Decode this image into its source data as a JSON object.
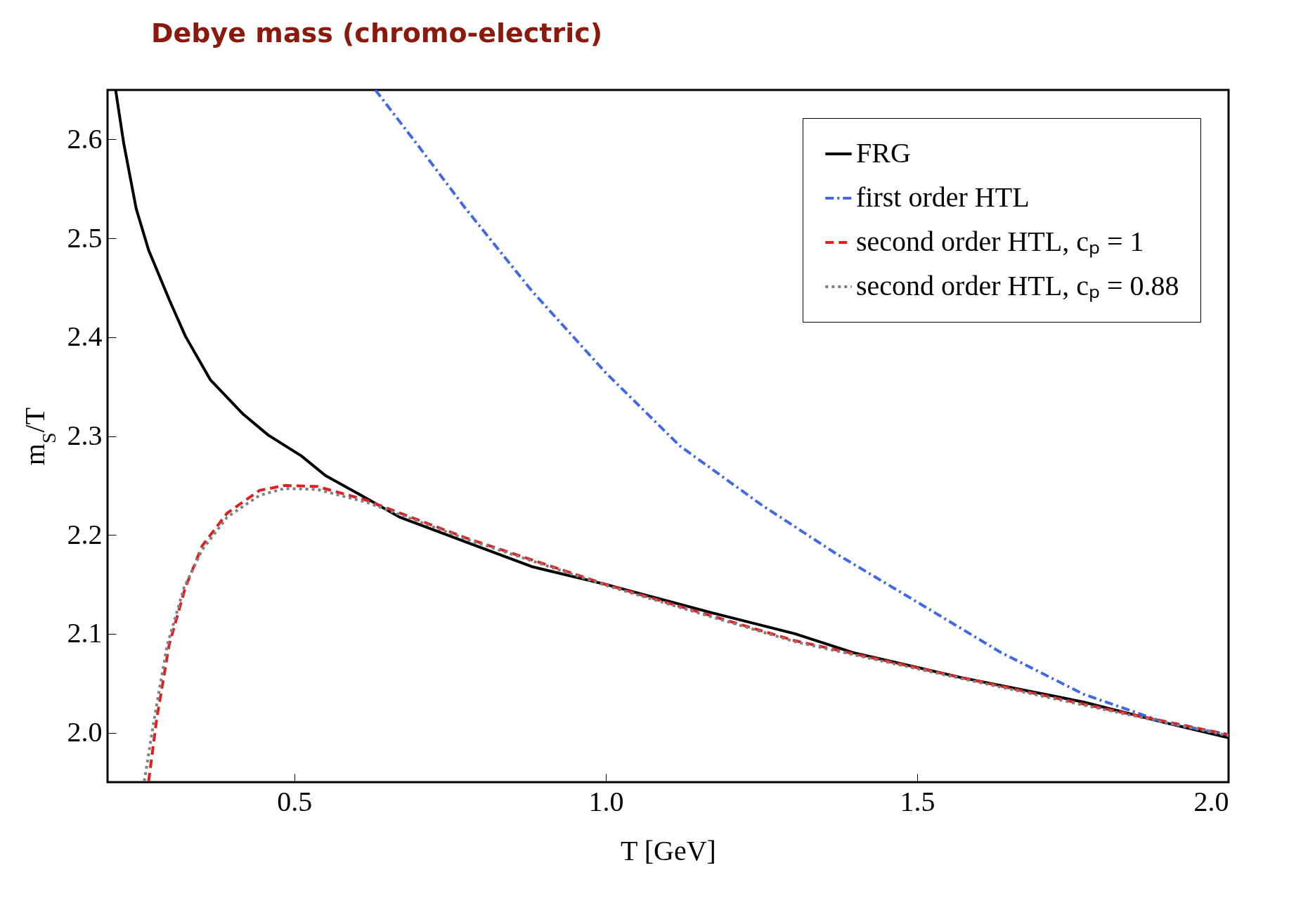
{
  "chart_data": {
    "type": "line",
    "title": "Debye mass (chromo-electric)",
    "xlabel": "T  [GeV]",
    "ylabel": "m$_{S}$/T",
    "xlim": [
      0.2,
      2.0
    ],
    "xticks": [
      0.5,
      {
        "value": 1,
        "label": "1.0"
      },
      1.5,
      {
        "value": 2,
        "label": "2.0"
      }
    ],
    "ylim": [
      1.95,
      2.65
    ],
    "yticks": [
      {
        "value": 2,
        "label": "2.0"
      },
      2.1,
      2.2,
      2.3,
      2.4,
      2.5,
      2.6
    ],
    "grid": false,
    "legend": "top right",
    "series": [
      {
        "name": "FRG",
        "color": "#000000",
        "line_style": "solid",
        "x": [
          0.213,
          0.226,
          0.246,
          0.266,
          0.299,
          0.325,
          0.365,
          0.418,
          0.458,
          0.511,
          0.55,
          0.616,
          0.669,
          0.775,
          0.881,
          1.0,
          1.172,
          1.304,
          1.397,
          1.569,
          1.767,
          1.899,
          2.0
        ],
        "values": [
          2.65,
          2.596,
          2.53,
          2.488,
          2.438,
          2.401,
          2.357,
          2.322,
          2.301,
          2.28,
          2.26,
          2.237,
          2.218,
          2.193,
          2.168,
          2.15,
          2.121,
          2.1,
          2.081,
          2.056,
          2.031,
          2.01,
          1.995
        ]
      },
      {
        "name": "first order HTL",
        "color": "#4169e1",
        "line_style": "dashdot",
        "x": [
          0.63,
          0.696,
          0.775,
          0.881,
          1.0,
          1.119,
          1.251,
          1.37,
          1.503,
          1.635,
          1.767,
          1.899,
          2.0
        ],
        "values": [
          2.65,
          2.596,
          2.53,
          2.447,
          2.364,
          2.29,
          2.23,
          2.181,
          2.131,
          2.081,
          2.039,
          2.01,
          1.998
        ]
      },
      {
        "name": "second order HTL, cₚ = 1",
        "color": "#e02020",
        "line_style": "dashed",
        "x": [
          0.266,
          0.279,
          0.299,
          0.325,
          0.352,
          0.392,
          0.444,
          0.484,
          0.537,
          0.616,
          0.775,
          1.0,
          1.304,
          1.569,
          1.833,
          2.0
        ],
        "values": [
          1.951,
          2.014,
          2.089,
          2.147,
          2.189,
          2.222,
          2.245,
          2.25,
          2.249,
          2.235,
          2.197,
          2.15,
          2.093,
          2.056,
          2.02,
          1.998
        ]
      },
      {
        "name": "second order HTL, cₚ = 0.88",
        "color": "#808080",
        "line_style": "dotted",
        "x": [
          0.259,
          0.275,
          0.296,
          0.323,
          0.352,
          0.392,
          0.444,
          0.484,
          0.537,
          0.616,
          0.775,
          1.0,
          1.304,
          1.569,
          1.833,
          2.0
        ],
        "values": [
          1.951,
          2.014,
          2.089,
          2.147,
          2.185,
          2.218,
          2.24,
          2.247,
          2.246,
          2.233,
          2.196,
          2.149,
          2.092,
          2.055,
          2.019,
          1.997
        ]
      }
    ]
  }
}
